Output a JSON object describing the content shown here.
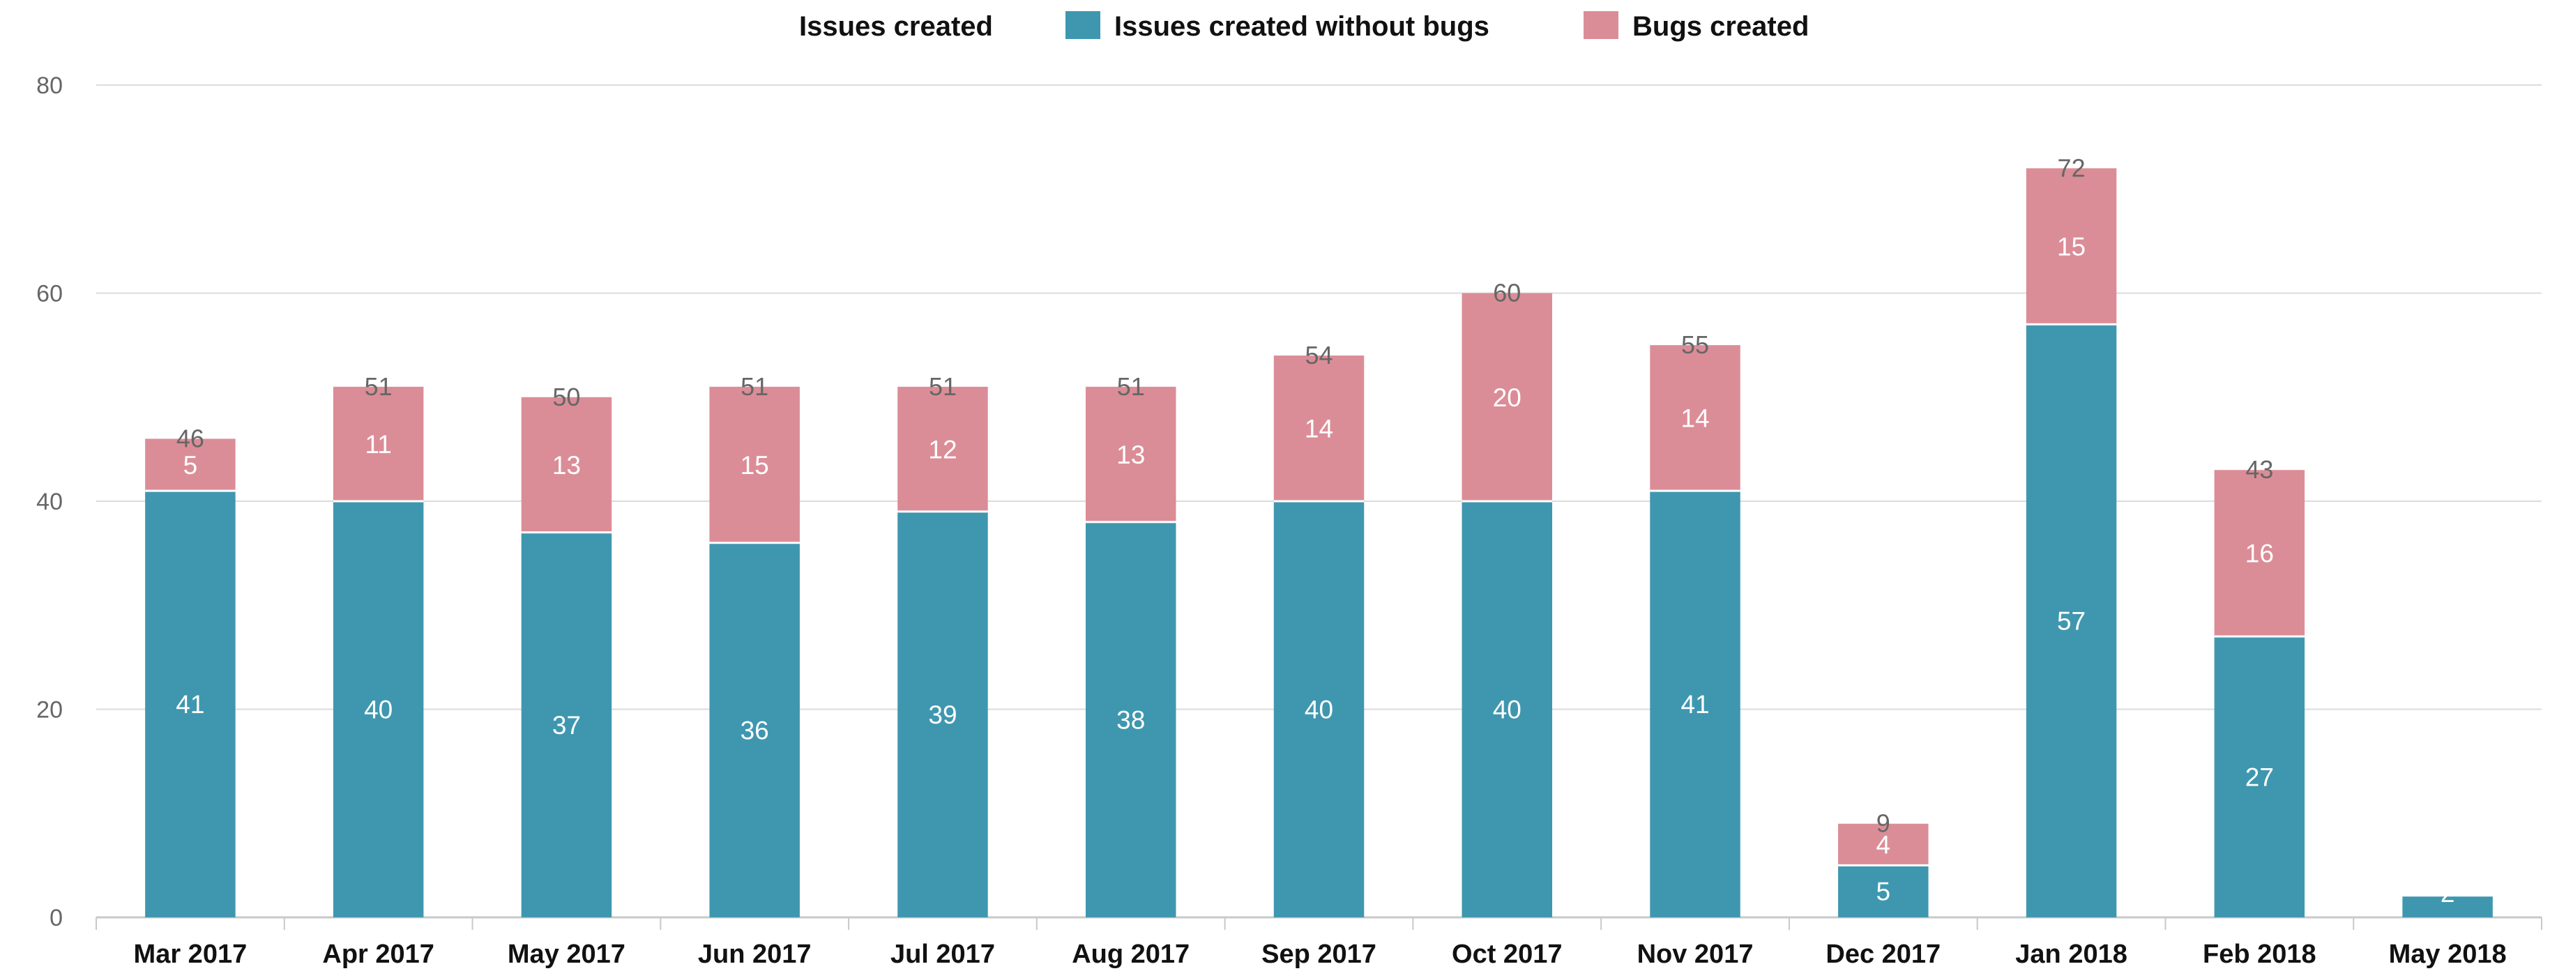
{
  "chart_data": {
    "type": "bar",
    "stacked": true,
    "categories": [
      "Mar 2017",
      "Apr 2017",
      "May 2017",
      "Jun 2017",
      "Jul 2017",
      "Aug 2017",
      "Sep 2017",
      "Oct 2017",
      "Nov 2017",
      "Dec 2017",
      "Jan 2018",
      "Feb 2018",
      "May 2018"
    ],
    "series": [
      {
        "name": "Issues created without bugs",
        "color": "#3f97af",
        "values": [
          41,
          40,
          37,
          36,
          39,
          38,
          40,
          40,
          41,
          5,
          57,
          27,
          2
        ]
      },
      {
        "name": "Bugs created",
        "color": "#db8d97",
        "values": [
          5,
          11,
          13,
          15,
          12,
          13,
          14,
          20,
          14,
          4,
          15,
          16,
          0
        ]
      }
    ],
    "totals": {
      "name": "Issues created",
      "values": [
        46,
        51,
        50,
        51,
        51,
        51,
        54,
        60,
        55,
        9,
        72,
        43,
        2
      ]
    },
    "legend": [
      "Issues created",
      "Issues created without bugs",
      "Bugs created"
    ],
    "legend_position": "top",
    "ylim": [
      0,
      80
    ],
    "yticks": [
      0,
      20,
      40,
      60,
      80
    ],
    "grid": true
  }
}
